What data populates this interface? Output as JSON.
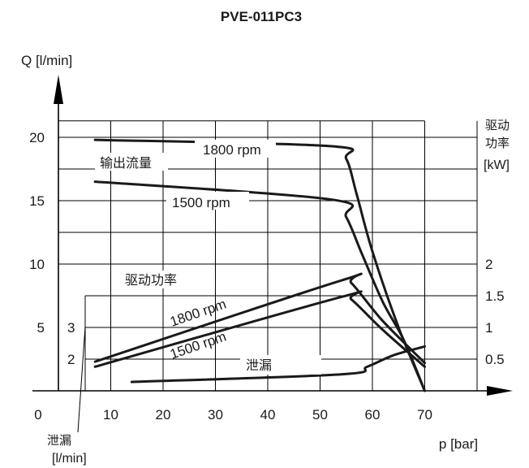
{
  "chart_data": {
    "type": "line",
    "title": "PVE-011PC3",
    "ylabel": "Q [l/min]",
    "xlabel": "p [bar]",
    "xlim": [
      0,
      80
    ],
    "ylim": [
      0,
      22
    ],
    "x_ticks": [
      "0",
      "10",
      "20",
      "30",
      "40",
      "50",
      "60",
      "70"
    ],
    "y_ticks": [
      "5",
      "10",
      "15",
      "20"
    ],
    "right_axis": {
      "label_line1": "驱动",
      "label_line2": "功率",
      "label_unit": "[kW]",
      "ticks": [
        "2",
        "1.5",
        "1",
        "0.5"
      ]
    },
    "leak_axis": {
      "label_line1": "泄漏",
      "label_unit": "[l/min]",
      "ticks": [
        "3",
        "2"
      ]
    },
    "annotations": {
      "flow": "输出流量",
      "power": "驱动功率",
      "leak": "泄漏"
    },
    "series": [
      {
        "name": "1800 rpm",
        "group": "flow",
        "points": [
          [
            7,
            19.8
          ],
          [
            52,
            19.3
          ],
          [
            55,
            18.3
          ],
          [
            57,
            15.5
          ],
          [
            60,
            11
          ],
          [
            65,
            5
          ],
          [
            70,
            0
          ]
        ]
      },
      {
        "name": "1500 rpm",
        "group": "flow",
        "points": [
          [
            7,
            16.5
          ],
          [
            52,
            15.1
          ],
          [
            55,
            13.7
          ],
          [
            58,
            10.8
          ],
          [
            62,
            7
          ],
          [
            66,
            4
          ],
          [
            70,
            0
          ]
        ]
      },
      {
        "name": "1800 rpm",
        "group": "power",
        "points": [
          [
            7,
            2.3
          ],
          [
            54,
            8.7
          ],
          [
            56,
            8.5
          ],
          [
            62,
            5.5
          ],
          [
            70,
            2.2
          ]
        ]
      },
      {
        "name": "1500 rpm",
        "group": "power",
        "points": [
          [
            7,
            1.9
          ],
          [
            54,
            7.4
          ],
          [
            56,
            7.2
          ],
          [
            62,
            4.8
          ],
          [
            70,
            1.9
          ]
        ]
      },
      {
        "name": "泄漏",
        "group": "leak",
        "points": [
          [
            14,
            0.7
          ],
          [
            54,
            1.3
          ],
          [
            59,
            1.9
          ],
          [
            64,
            2.8
          ],
          [
            70,
            3.5
          ]
        ]
      }
    ],
    "grid": true
  }
}
